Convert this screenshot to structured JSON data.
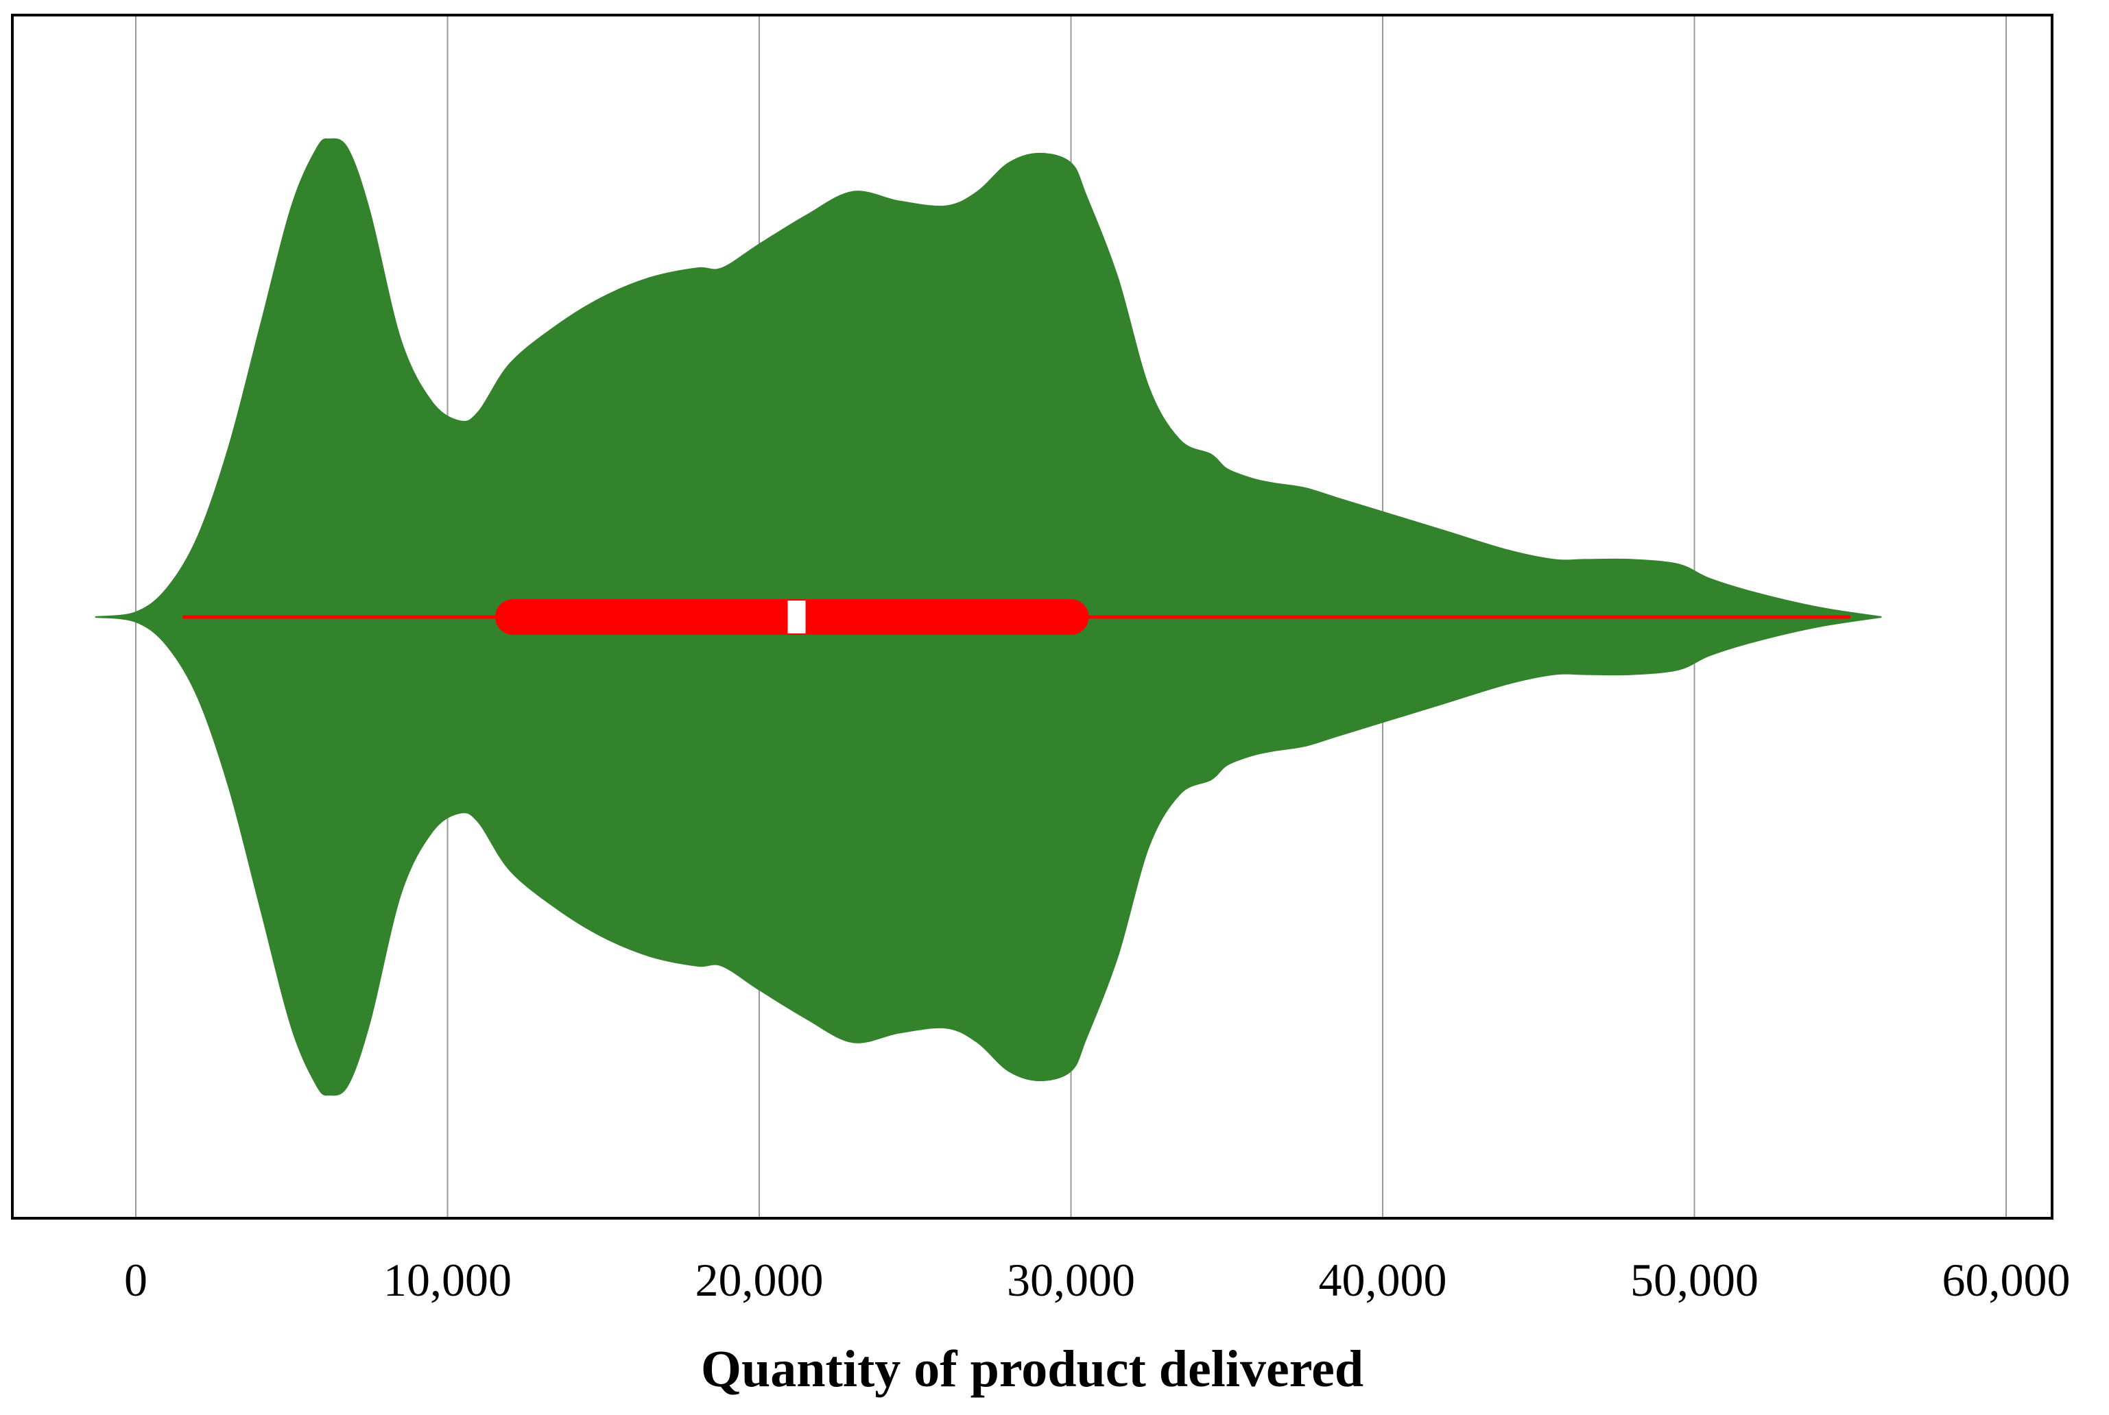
{
  "chart_data": {
    "type": "violin",
    "title": "",
    "xlabel": "Quantity of product delivered",
    "ylabel": "",
    "xlim": [
      -4000,
      61000
    ],
    "x_ticks": [
      0,
      10000,
      20000,
      30000,
      40000,
      50000,
      60000
    ],
    "x_tick_labels": [
      "0",
      "10,000",
      "20,000",
      "30,000",
      "40,000",
      "50,000",
      "60,000"
    ],
    "grid": "vertical",
    "orientation": "horizontal",
    "density_profile": {
      "x": [
        -1300,
        0,
        1000,
        2000,
        3000,
        4000,
        5000,
        5800,
        6200,
        6800,
        7500,
        8500,
        9500,
        10400,
        11000,
        12000,
        13500,
        15000,
        16500,
        18000,
        18800,
        20000,
        21500,
        23000,
        24500,
        26000,
        27000,
        28000,
        29000,
        30000,
        30500,
        31500,
        32500,
        33500,
        34500,
        35000,
        35800,
        36500,
        37500,
        38500,
        40000,
        42000,
        44000,
        45500,
        46500,
        48000,
        49500,
        50500,
        52000,
        54000,
        56000
      ],
      "half_width": [
        0.0,
        0.01,
        0.06,
        0.17,
        0.36,
        0.61,
        0.86,
        0.98,
        1.0,
        0.98,
        0.85,
        0.58,
        0.45,
        0.41,
        0.43,
        0.53,
        0.61,
        0.67,
        0.71,
        0.73,
        0.73,
        0.78,
        0.84,
        0.89,
        0.87,
        0.86,
        0.89,
        0.95,
        0.97,
        0.95,
        0.88,
        0.71,
        0.48,
        0.37,
        0.34,
        0.31,
        0.29,
        0.28,
        0.27,
        0.25,
        0.22,
        0.18,
        0.14,
        0.12,
        0.12,
        0.12,
        0.11,
        0.08,
        0.05,
        0.02,
        0.0
      ]
    },
    "whisker_low": 1500,
    "q1": 12100,
    "median": 21200,
    "q3": 30000,
    "whisker_high": 55000,
    "colors": {
      "violin": "#33832d",
      "box": "#ff0000",
      "median": "#ffffff",
      "grid": "#9a9a9a",
      "frame": "#000000"
    }
  }
}
